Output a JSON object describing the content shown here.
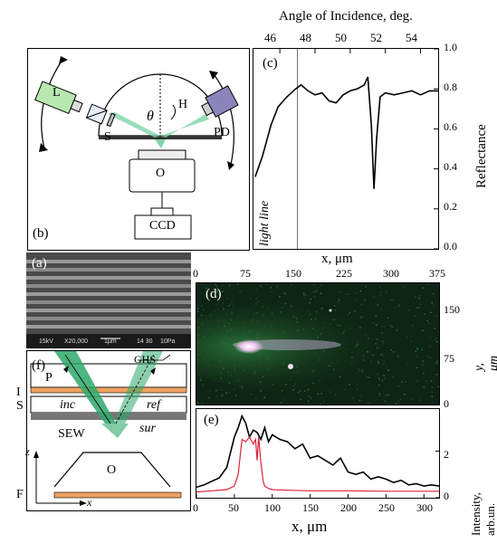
{
  "panels": {
    "b": {
      "label": "(b)",
      "components": {
        "laser": "L",
        "hemisphere": "H",
        "photodiode": "PD",
        "sample": "S",
        "objective": "O",
        "camera": "CCD",
        "angle": "θ"
      }
    },
    "c": {
      "label": "(c)",
      "top_axis_title": "Angle of Incidence, deg.",
      "top_ticks": [
        "46",
        "48",
        "50",
        "52",
        "54"
      ],
      "ylabel": "Reflectance",
      "xlabel": "x, μm",
      "y_ticks": [
        "0.0",
        "0.2",
        "0.4",
        "0.6",
        "0.8",
        "1.0"
      ],
      "annotation": "light line"
    },
    "a": {
      "label": "(a)",
      "sem_footer": [
        "15kV",
        "X20,000",
        "1μm",
        "14 30",
        "10Pa"
      ]
    },
    "d": {
      "label": "(d)",
      "top_ticks": [
        "0",
        "75",
        "150",
        "225",
        "300",
        "375"
      ],
      "ylabel": "y, μm",
      "y_ticks": [
        "150",
        "75",
        "0"
      ]
    },
    "e": {
      "label": "(e)",
      "xlabel": "x, μm",
      "ylabel": "Intensity, arb.un.",
      "x_ticks": [
        "0",
        "50",
        "100",
        "150",
        "200",
        "250",
        "300"
      ],
      "y_ticks": [
        "0",
        "2"
      ]
    },
    "f": {
      "label": "(f)",
      "labels": {
        "ghs": "GHS",
        "prism": "P",
        "immersion": "I",
        "substrate": "S",
        "incident": "inc",
        "reflected": "ref",
        "sew": "SEW",
        "surface": "sur",
        "objective": "O",
        "filter": "F",
        "z_axis": "z",
        "x_axis": "x"
      }
    }
  },
  "chart_data": [
    {
      "panel": "c",
      "type": "line",
      "x_axis": "Angle of Incidence, deg.",
      "y_axis": "Reflectance",
      "xlim": [
        44.5,
        55
      ],
      "ylim": [
        0,
        1
      ],
      "light_line_x": 47,
      "x": [
        44.6,
        45.0,
        45.5,
        45.9,
        46.4,
        46.9,
        47.2,
        47.6,
        48.0,
        48.4,
        48.8,
        49.2,
        49.6,
        50.0,
        50.4,
        50.8,
        51.0,
        51.2,
        51.35,
        51.5,
        51.7,
        52.0,
        52.5,
        53.0,
        53.5,
        54.0,
        54.5,
        55.0
      ],
      "values": [
        0.36,
        0.46,
        0.62,
        0.71,
        0.76,
        0.8,
        0.82,
        0.79,
        0.77,
        0.78,
        0.74,
        0.73,
        0.77,
        0.79,
        0.8,
        0.82,
        0.86,
        0.62,
        0.3,
        0.55,
        0.76,
        0.78,
        0.77,
        0.78,
        0.79,
        0.77,
        0.79,
        0.79
      ]
    },
    {
      "panel": "e",
      "type": "line",
      "xlim": [
        0,
        320
      ],
      "ylim": [
        0,
        3.8
      ],
      "series": [
        {
          "color": "#000000",
          "x": [
            0,
            10,
            20,
            30,
            40,
            50,
            55,
            60,
            65,
            70,
            75,
            80,
            85,
            90,
            95,
            100,
            110,
            120,
            130,
            140,
            150,
            160,
            170,
            180,
            190,
            200,
            210,
            220,
            230,
            240,
            250,
            260,
            270,
            280,
            290,
            300,
            310,
            320
          ],
          "values": [
            0.45,
            0.55,
            0.7,
            0.85,
            1.3,
            2.6,
            3.0,
            3.5,
            3.2,
            2.6,
            2.9,
            2.8,
            2.5,
            3.0,
            2.4,
            2.7,
            2.5,
            2.4,
            2.1,
            2.3,
            1.7,
            1.8,
            1.6,
            1.4,
            1.7,
            1.1,
            1.0,
            1.1,
            0.8,
            0.9,
            0.8,
            0.65,
            0.75,
            0.55,
            0.6,
            0.5,
            0.55,
            0.5
          ]
        },
        {
          "color": "#e0203a",
          "x": [
            0,
            20,
            40,
            50,
            55,
            60,
            65,
            70,
            75,
            78,
            80,
            82,
            85,
            88,
            90,
            95,
            100,
            120,
            150,
            200,
            250,
            300,
            320
          ],
          "values": [
            0.25,
            0.3,
            0.35,
            0.5,
            1.0,
            2.5,
            2.4,
            2.6,
            2.3,
            2.5,
            1.6,
            2.6,
            1.5,
            0.7,
            0.5,
            0.4,
            0.35,
            0.32,
            0.3,
            0.3,
            0.28,
            0.28,
            0.28
          ]
        }
      ]
    }
  ]
}
